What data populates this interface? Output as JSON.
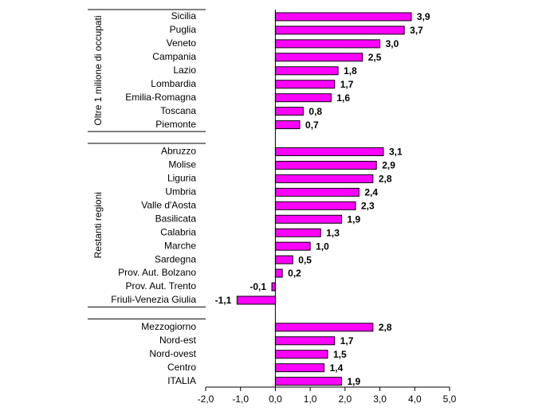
{
  "chart_data": {
    "type": "bar",
    "orientation": "horizontal",
    "title": "",
    "xlabel": "",
    "ylabel": "",
    "xlim": [
      -2.0,
      5.0
    ],
    "xticks": [
      "-2,0",
      "-1,0",
      "0,0",
      "1,0",
      "2,0",
      "3,0",
      "4,0",
      "5,0"
    ],
    "xtick_values": [
      -2,
      -1,
      0,
      1,
      2,
      3,
      4,
      5
    ],
    "grid": false,
    "bar_color": "#ff00ff",
    "bar_outline": "#000000",
    "groups": [
      {
        "name": "Oltre 1 milione di occupati",
        "items": [
          {
            "label": "Sicilia",
            "value": 3.9,
            "display": "3,9"
          },
          {
            "label": "Puglia",
            "value": 3.7,
            "display": "3,7"
          },
          {
            "label": "Veneto",
            "value": 3.0,
            "display": "3,0"
          },
          {
            "label": "Campania",
            "value": 2.5,
            "display": "2,5"
          },
          {
            "label": "Lazio",
            "value": 1.8,
            "display": "1,8"
          },
          {
            "label": "Lombardia",
            "value": 1.7,
            "display": "1,7"
          },
          {
            "label": "Emilia-Romagna",
            "value": 1.6,
            "display": "1,6"
          },
          {
            "label": "Toscana",
            "value": 0.8,
            "display": "0,8"
          },
          {
            "label": "Piemonte",
            "value": 0.7,
            "display": "0,7"
          }
        ]
      },
      {
        "name": "Restanti regioni",
        "items": [
          {
            "label": "Abruzzo",
            "value": 3.1,
            "display": "3,1"
          },
          {
            "label": "Molise",
            "value": 2.9,
            "display": "2,9"
          },
          {
            "label": "Liguria",
            "value": 2.8,
            "display": "2,8"
          },
          {
            "label": "Umbria",
            "value": 2.4,
            "display": "2,4"
          },
          {
            "label": "Valle d'Aosta",
            "value": 2.3,
            "display": "2,3"
          },
          {
            "label": "Basilicata",
            "value": 1.9,
            "display": "1,9"
          },
          {
            "label": "Calabria",
            "value": 1.3,
            "display": "1,3"
          },
          {
            "label": "Marche",
            "value": 1.0,
            "display": "1,0"
          },
          {
            "label": "Sardegna",
            "value": 0.5,
            "display": "0,5"
          },
          {
            "label": "Prov. Aut. Bolzano",
            "value": 0.2,
            "display": "0,2"
          },
          {
            "label": "Prov. Aut. Trento",
            "value": -0.1,
            "display": "-0,1"
          },
          {
            "label": "Friuli-Venezia Giulia",
            "value": -1.1,
            "display": "-1,1"
          }
        ]
      },
      {
        "name": "",
        "items": [
          {
            "label": "Mezzogiorno",
            "value": 2.8,
            "display": "2,8"
          },
          {
            "label": "Nord-est",
            "value": 1.7,
            "display": "1,7"
          },
          {
            "label": "Nord-ovest",
            "value": 1.5,
            "display": "1,5"
          },
          {
            "label": "Centro",
            "value": 1.4,
            "display": "1,4"
          },
          {
            "label": "ITALIA",
            "value": 1.9,
            "display": "1,9"
          }
        ]
      }
    ]
  }
}
